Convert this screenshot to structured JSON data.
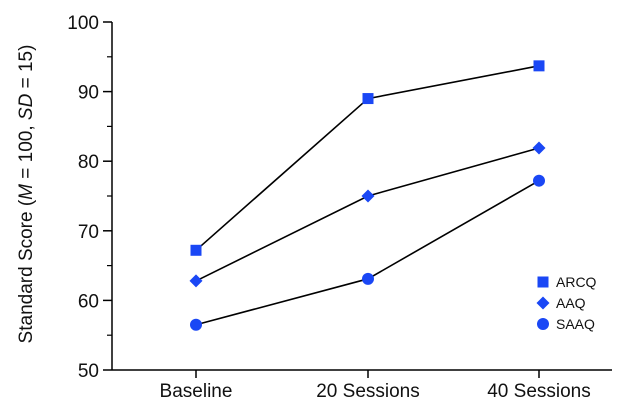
{
  "chart_data": {
    "type": "line",
    "categories": [
      "Baseline",
      "20 Sessions",
      "40 Sessions"
    ],
    "ylabel_parts": [
      {
        "text": "Standard Score (",
        "italic": false
      },
      {
        "text": "M",
        "italic": true
      },
      {
        "text": " = 100, ",
        "italic": false
      },
      {
        "text": "SD",
        "italic": true
      },
      {
        "text": " = 15)",
        "italic": false
      }
    ],
    "ylim": [
      50,
      100
    ],
    "yticks": [
      50,
      60,
      70,
      80,
      90,
      100
    ],
    "grid": false,
    "legend_position": "bottom-right",
    "series": [
      {
        "name": "ARCQ",
        "marker": "square",
        "values": [
          67.2,
          89.0,
          93.7
        ]
      },
      {
        "name": "AAQ",
        "marker": "diamond",
        "values": [
          62.8,
          75.0,
          81.9
        ]
      },
      {
        "name": "SAAQ",
        "marker": "circle",
        "values": [
          56.5,
          63.1,
          77.2
        ]
      }
    ],
    "colors": {
      "marker": "#1a47f5",
      "line": "#000000",
      "axis": "#000000"
    }
  }
}
